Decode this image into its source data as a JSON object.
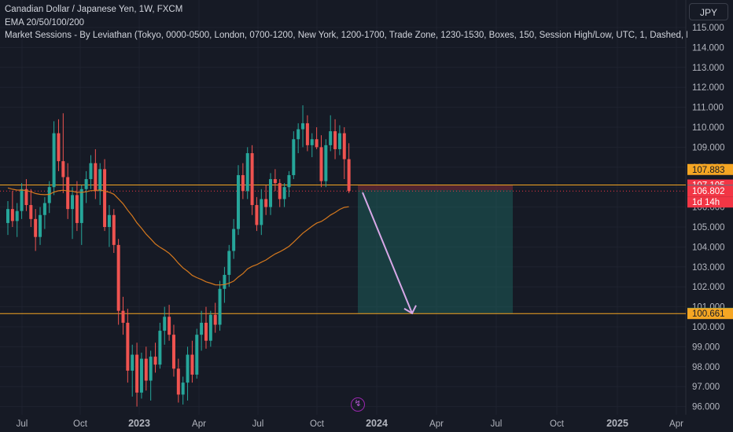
{
  "legend": {
    "title": "Canadian Dollar / Japanese Yen, 1W, FXCM",
    "line2": "EMA 20/50/100/200",
    "line3": "Market Sessions - By Leviathan (Tokyo, 0000-0500, London, 0700-1200, New York, 1200-1700, Trade Zone, 1230-1530, Boxes, 150, Session High/Low, UTC, 1, Dashed, Das"
  },
  "currency_button": "JPY",
  "bolt_icon": "lightning-icon",
  "colors": {
    "background": "#161a25",
    "up_candle": "#26a69a",
    "down_candle": "#ef5350",
    "ema": "#d4781e",
    "horizontal_line": "#f5a623",
    "target_zone": "#1e5d5a",
    "stop_zone": "#6b2a35",
    "arrow": "#d8a8e8"
  },
  "chart_data": {
    "type": "candlestick",
    "symbol": "CADJPY",
    "timeframe": "1W",
    "y_axis": {
      "ylim": [
        95.6,
        115.6
      ],
      "ticks": [
        "115.000",
        "114.000",
        "113.000",
        "112.000",
        "111.000",
        "110.000",
        "109.000",
        "108.000",
        "107.000",
        "106.000",
        "105.000",
        "104.000",
        "103.000",
        "102.000",
        "101.000",
        "100.000",
        "99.000",
        "98.000",
        "97.000",
        "96.000"
      ]
    },
    "x_axis": {
      "ticks": [
        "Jul",
        "Oct",
        "2023",
        "Apr",
        "Jul",
        "Oct",
        "2024",
        "Apr",
        "Jul",
        "Oct",
        "2025",
        "Apr"
      ],
      "bold_ticks": [
        "2023",
        "2024",
        "2025"
      ]
    },
    "candles": [
      [
        105.2,
        106.3,
        104.6,
        105.9
      ],
      [
        105.9,
        106.8,
        105.0,
        105.3
      ],
      [
        105.3,
        106.2,
        104.5,
        105.8
      ],
      [
        105.8,
        107.2,
        105.4,
        106.9
      ],
      [
        106.9,
        107.4,
        105.8,
        106.1
      ],
      [
        106.1,
        106.9,
        105.0,
        105.4
      ],
      [
        105.4,
        105.9,
        103.8,
        104.5
      ],
      [
        104.5,
        106.0,
        104.1,
        105.6
      ],
      [
        105.6,
        106.5,
        104.9,
        106.2
      ],
      [
        106.2,
        107.3,
        105.7,
        107.0
      ],
      [
        107.0,
        110.3,
        106.6,
        109.7
      ],
      [
        109.7,
        110.4,
        107.8,
        108.3
      ],
      [
        108.3,
        110.7,
        106.7,
        107.5
      ],
      [
        107.5,
        108.2,
        105.4,
        105.9
      ],
      [
        105.9,
        107.0,
        104.4,
        106.6
      ],
      [
        106.6,
        107.3,
        104.8,
        105.2
      ],
      [
        105.2,
        107.1,
        104.1,
        106.9
      ],
      [
        106.9,
        107.8,
        106.2,
        107.4
      ],
      [
        107.4,
        108.6,
        106.9,
        108.2
      ],
      [
        108.2,
        108.9,
        106.4,
        106.8
      ],
      [
        106.8,
        108.2,
        106.1,
        107.9
      ],
      [
        107.9,
        108.4,
        104.8,
        105.0
      ],
      [
        105.0,
        106.1,
        104.0,
        105.6
      ],
      [
        105.6,
        105.9,
        103.7,
        104.1
      ],
      [
        104.1,
        104.4,
        100.1,
        100.8
      ],
      [
        100.8,
        101.5,
        99.6,
        100.2
      ],
      [
        100.2,
        100.9,
        97.2,
        97.8
      ],
      [
        97.8,
        99.1,
        96.5,
        98.6
      ],
      [
        98.6,
        99.2,
        96.0,
        96.7
      ],
      [
        96.7,
        98.7,
        96.4,
        98.4
      ],
      [
        98.4,
        99.0,
        96.8,
        97.3
      ],
      [
        97.3,
        98.8,
        96.3,
        98.5
      ],
      [
        98.5,
        99.2,
        97.7,
        98.1
      ],
      [
        98.1,
        100.2,
        97.9,
        99.8
      ],
      [
        99.8,
        101.0,
        99.1,
        100.5
      ],
      [
        100.5,
        101.1,
        99.3,
        99.6
      ],
      [
        99.6,
        100.1,
        97.5,
        97.9
      ],
      [
        97.9,
        98.4,
        96.2,
        96.6
      ],
      [
        96.6,
        97.5,
        96.1,
        97.2
      ],
      [
        97.2,
        99.0,
        96.3,
        98.6
      ],
      [
        98.6,
        99.3,
        97.2,
        97.6
      ],
      [
        97.6,
        99.9,
        97.4,
        99.6
      ],
      [
        99.6,
        100.8,
        98.8,
        100.2
      ],
      [
        100.2,
        101.0,
        98.9,
        99.3
      ],
      [
        99.3,
        100.8,
        99.0,
        100.6
      ],
      [
        100.6,
        101.2,
        99.7,
        100.1
      ],
      [
        100.1,
        102.3,
        99.8,
        101.9
      ],
      [
        101.9,
        103.0,
        101.2,
        102.6
      ],
      [
        102.6,
        104.1,
        102.0,
        103.8
      ],
      [
        103.8,
        105.4,
        103.4,
        104.9
      ],
      [
        104.9,
        108.1,
        104.6,
        107.6
      ],
      [
        107.6,
        108.2,
        106.4,
        106.8
      ],
      [
        106.8,
        109.0,
        106.4,
        108.7
      ],
      [
        108.7,
        109.1,
        105.6,
        106.1
      ],
      [
        106.1,
        106.5,
        104.8,
        105.1
      ],
      [
        105.1,
        106.9,
        104.6,
        106.4
      ],
      [
        106.4,
        107.1,
        105.6,
        106.0
      ],
      [
        106.0,
        107.7,
        105.6,
        107.4
      ],
      [
        107.4,
        107.9,
        106.8,
        107.2
      ],
      [
        107.2,
        107.4,
        106.0,
        106.4
      ],
      [
        106.4,
        107.2,
        106.0,
        107.0
      ],
      [
        107.0,
        107.8,
        106.5,
        107.6
      ],
      [
        107.6,
        109.8,
        107.4,
        109.4
      ],
      [
        109.4,
        110.2,
        108.7,
        109.9
      ],
      [
        109.9,
        111.1,
        109.0,
        110.2
      ],
      [
        110.2,
        110.6,
        108.8,
        109.1
      ],
      [
        109.1,
        109.7,
        108.5,
        109.4
      ],
      [
        109.4,
        110.0,
        108.9,
        109.0
      ],
      [
        109.0,
        109.6,
        107.0,
        107.3
      ],
      [
        107.3,
        109.4,
        107.0,
        109.1
      ],
      [
        109.1,
        110.6,
        108.8,
        109.8
      ],
      [
        109.8,
        110.4,
        108.4,
        108.9
      ],
      [
        108.9,
        110.1,
        108.6,
        109.7
      ],
      [
        109.7,
        110.0,
        107.4,
        108.4
      ],
      [
        108.4,
        109.2,
        106.7,
        106.8
      ]
    ],
    "ema_label": "EMA 20/50/100/200",
    "lines": [
      {
        "name": "resistance",
        "value": 107.105,
        "label": "107.105"
      },
      {
        "name": "support",
        "value": 100.661,
        "label": "100.661"
      }
    ],
    "price_labels": [
      {
        "value": 107.883,
        "text": "107.883",
        "color": "#f5a623"
      },
      {
        "value": 107.105,
        "text": "107.105",
        "color": "#f23645"
      },
      {
        "value": 106.848,
        "text": "106.848",
        "color": "#6b6f7a"
      },
      {
        "value": 106.802,
        "text": "106.802",
        "color": "#f23645"
      },
      {
        "value": 100.675,
        "text": "100.675",
        "color": "#089981"
      },
      {
        "value": 100.661,
        "text": "100.661",
        "color": "#f5a623"
      }
    ],
    "countdown": "1d 14h",
    "position": {
      "type": "short",
      "entry": 106.85,
      "stop": 107.1,
      "target": 100.675
    }
  }
}
